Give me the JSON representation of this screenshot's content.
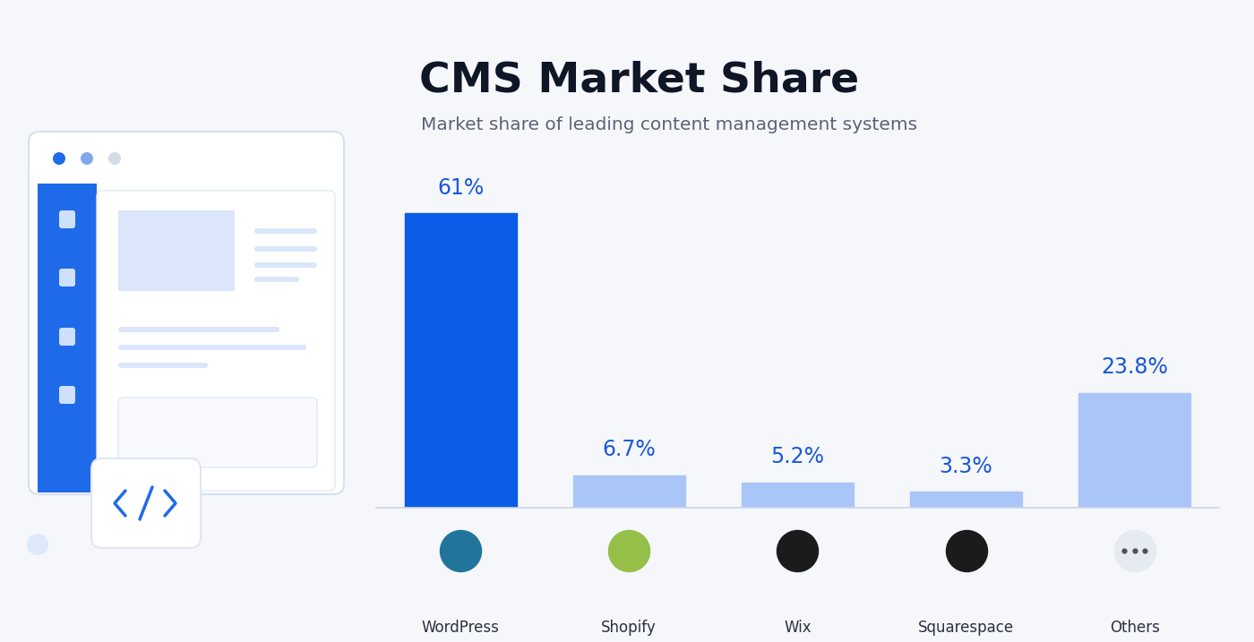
{
  "chart_data": {
    "type": "bar",
    "title": "CMS Market Share",
    "subtitle": "Market share of leading content management systems",
    "categories": [
      "WordPress",
      "Shopify",
      "Wix",
      "Squarespace",
      "Others"
    ],
    "values": [
      61,
      6.7,
      5.2,
      3.3,
      23.8
    ],
    "value_labels": [
      "61%",
      "6.7%",
      "5.2%",
      "3.3%",
      "23.8%"
    ],
    "colors": [
      "#0b5ce6",
      "#aac6f8",
      "#aac6f8",
      "#aac6f8",
      "#aac6f8"
    ],
    "data_labels": true,
    "tick_labels": "x",
    "grid": false
  }
}
